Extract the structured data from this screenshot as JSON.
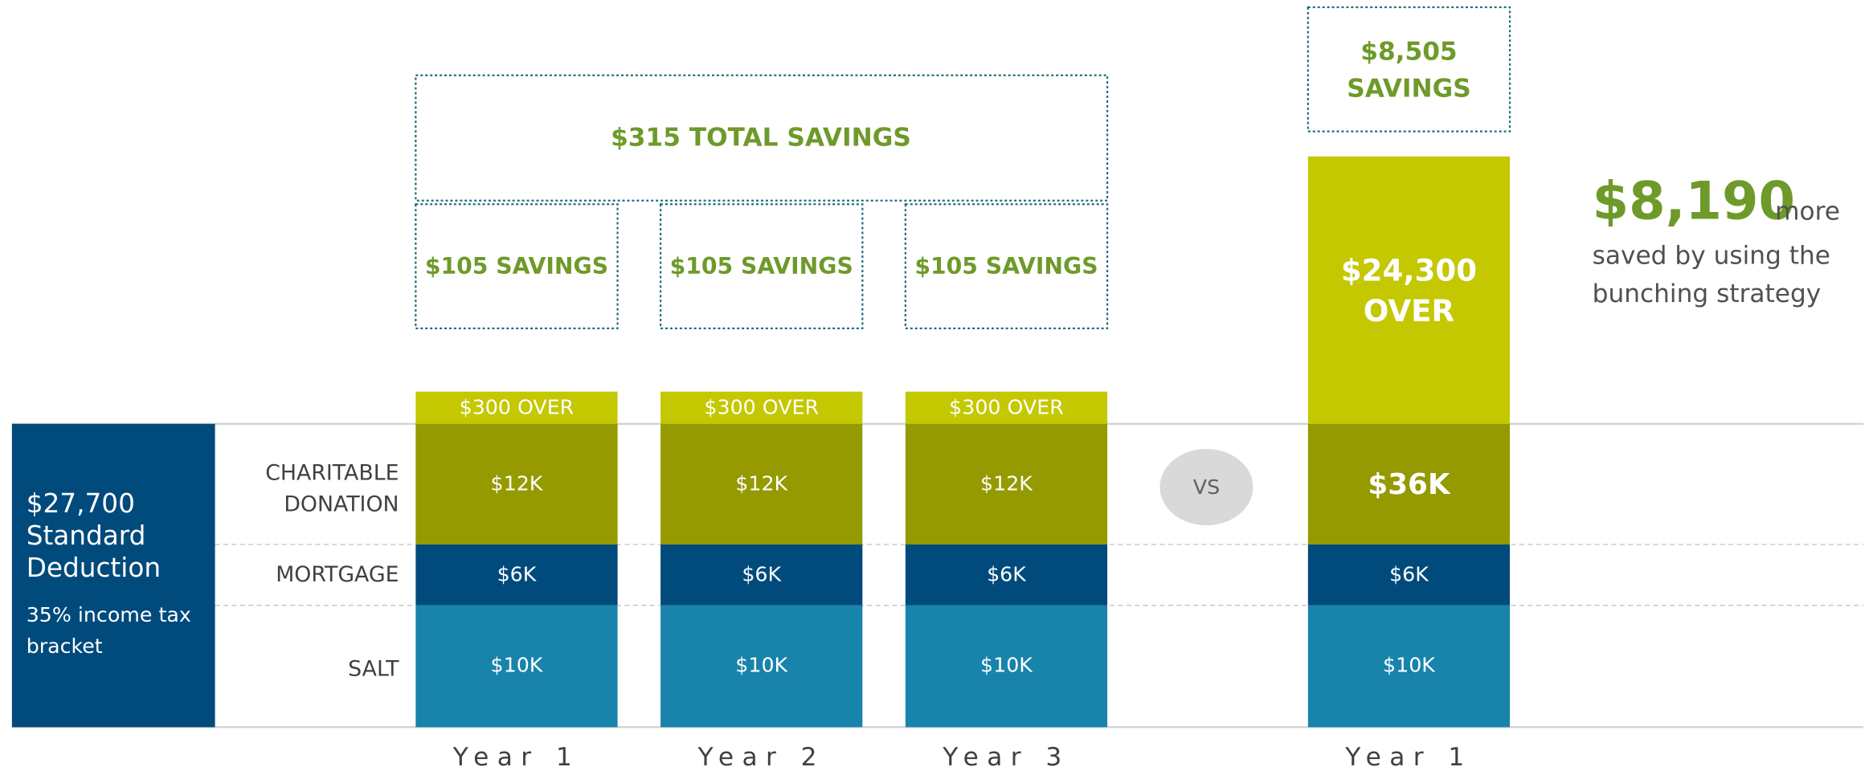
{
  "left_panel": {
    "deduction_lines": [
      "$27,700",
      "Standard",
      "Deduction"
    ],
    "bracket_lines": [
      "35% income tax",
      "bracket"
    ]
  },
  "row_labels": {
    "charitable_lines": [
      "CHARITABLE",
      "DONATION"
    ],
    "mortgage": "MORTGAGE",
    "salt": "SALT"
  },
  "annual": {
    "total": "$315 TOTAL SAVINGS",
    "years": [
      {
        "label": "Year 1",
        "savings": "$105 SAVINGS",
        "over": "$300 OVER",
        "charitable": "$12K",
        "mortgage": "$6K",
        "salt": "$10K"
      },
      {
        "label": "Year 2",
        "savings": "$105 SAVINGS",
        "over": "$300 OVER",
        "charitable": "$12K",
        "mortgage": "$6K",
        "salt": "$10K"
      },
      {
        "label": "Year 3",
        "savings": "$105 SAVINGS",
        "over": "$300 OVER",
        "charitable": "$12K",
        "mortgage": "$6K",
        "salt": "$10K"
      }
    ]
  },
  "vs": "VS",
  "bunched": {
    "label": "Year 1",
    "savings_lines": [
      "$8,505",
      "SAVINGS"
    ],
    "over_lines": [
      "$24,300",
      "OVER"
    ],
    "charitable": "$36K",
    "mortgage": "$6K",
    "salt": "$10K"
  },
  "summary": {
    "amount": "$8,190",
    "text_lines": [
      "more",
      "saved by using the",
      "bunching strategy"
    ]
  }
}
